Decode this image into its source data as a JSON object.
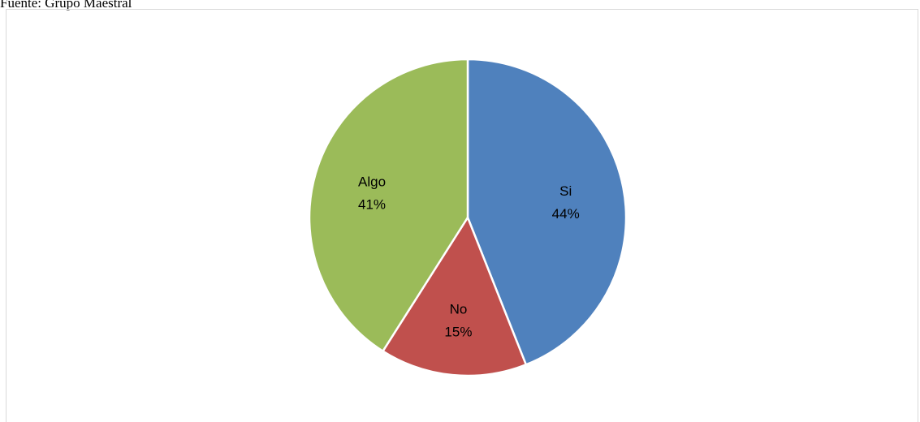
{
  "source": "Fuente: Grupo Maestral",
  "chart_data": {
    "type": "pie",
    "title": "",
    "start_angle_deg": 0,
    "slices": [
      {
        "category": "Si",
        "value": 44,
        "label": "44%",
        "color": "#4F81BD"
      },
      {
        "category": "No",
        "value": 15,
        "label": "15%",
        "color": "#C0504D"
      },
      {
        "category": "Algo",
        "value": 41,
        "label": "41%",
        "color": "#9BBB59"
      }
    ],
    "legend": "none",
    "data_labels": "inside"
  }
}
